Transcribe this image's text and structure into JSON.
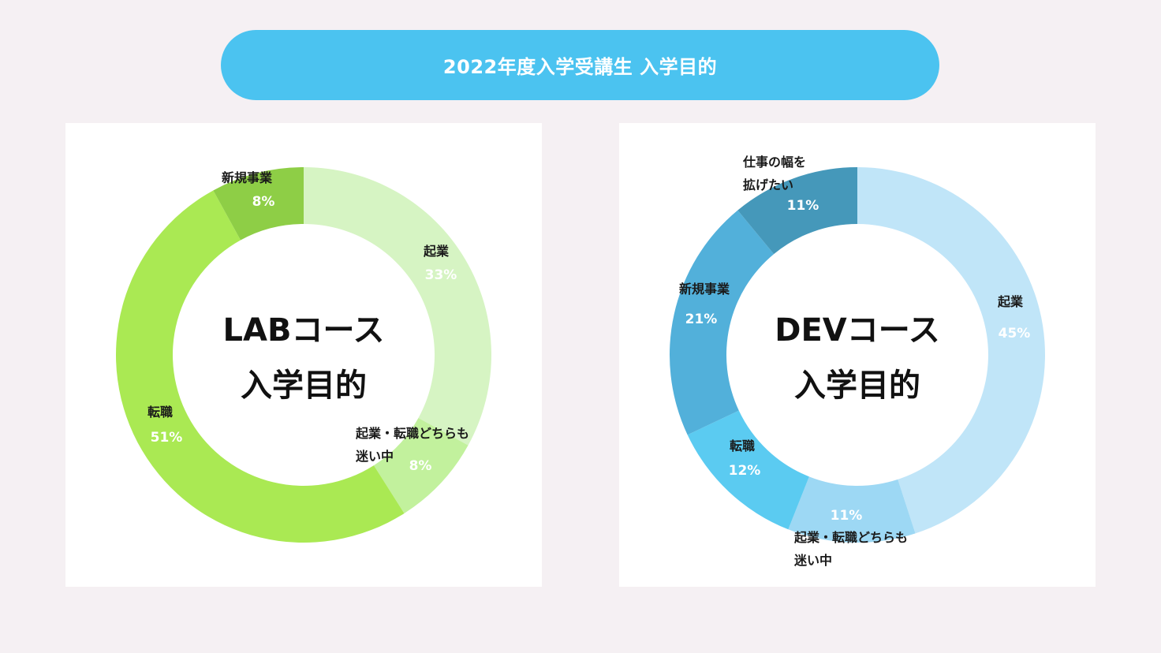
{
  "header": {
    "title": "2022年度入学受講生 入学目的",
    "color": "#4bc3f0"
  },
  "chart_data": [
    {
      "type": "pie",
      "subtype": "donut",
      "title_lines": [
        "LABコース",
        "入学目的"
      ],
      "slices": [
        {
          "label_lines": [
            "起業"
          ],
          "value": 33,
          "display": "33%",
          "color": "#d6f4c3"
        },
        {
          "label_lines": [
            "起業・転職どちらも",
            "迷い中"
          ],
          "value": 8,
          "display": "8%",
          "color": "#c2f19d"
        },
        {
          "label_lines": [
            "転職"
          ],
          "value": 51,
          "display": "51%",
          "color": "#aae953"
        },
        {
          "label_lines": [
            "新規事業"
          ],
          "value": 8,
          "display": "8%",
          "color": "#8ece46"
        }
      ]
    },
    {
      "type": "pie",
      "subtype": "donut",
      "title_lines": [
        "DEVコース",
        "入学目的"
      ],
      "slices": [
        {
          "label_lines": [
            "起業"
          ],
          "value": 45,
          "display": "45%",
          "color": "#c0e5f8"
        },
        {
          "label_lines": [
            "起業・転職どちらも",
            "迷い中"
          ],
          "value": 11,
          "display": "11%",
          "color": "#9dd8f4"
        },
        {
          "label_lines": [
            "転職"
          ],
          "value": 12,
          "display": "12%",
          "color": "#5bcbf1"
        },
        {
          "label_lines": [
            "新規事業"
          ],
          "value": 21,
          "display": "21%",
          "color": "#52b0da"
        },
        {
          "label_lines": [
            "仕事の幅を",
            "拡げたい"
          ],
          "value": 11,
          "display": "11%",
          "color": "#4598ba"
        }
      ]
    }
  ]
}
